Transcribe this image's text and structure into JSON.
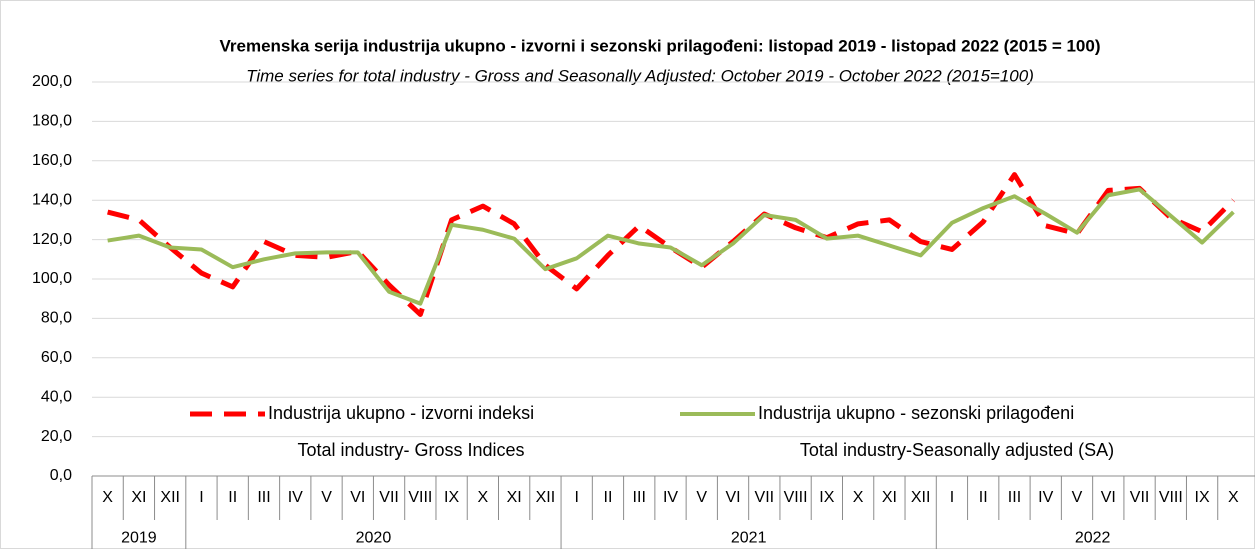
{
  "chart_data": {
    "type": "line",
    "title": "Vremenska serija industrija ukupno - izvorni i sezonski prilagođeni: listopad 2019 - listopad 2022 (2015 = 100)",
    "subtitle": "Time series for total industry - Gross and Seasonally Adjusted: October 2019 - October 2022 (2015=100)",
    "category_groups": [
      {
        "name": "2019",
        "categories": [
          "X",
          "XI",
          "XII"
        ]
      },
      {
        "name": "2020",
        "categories": [
          "I",
          "II",
          "III",
          "IV",
          "V",
          "VI",
          "VII",
          "VIII",
          "IX",
          "X",
          "XI",
          "XII"
        ]
      },
      {
        "name": "2021",
        "categories": [
          "I",
          "II",
          "III",
          "IV",
          "V",
          "VI",
          "VII",
          "VIII",
          "IX",
          "X",
          "XI",
          "XII"
        ]
      },
      {
        "name": "2022",
        "categories": [
          "I",
          "II",
          "III",
          "IV",
          "V",
          "VI",
          "VII",
          "VIII",
          "IX",
          "X"
        ]
      }
    ],
    "series": [
      {
        "name": "Industrija ukupno - izvorni indeksi",
        "name_en": "Total industry- Gross Indices",
        "color": "#ff0000",
        "dashed": true,
        "values": [
          134,
          130,
          116,
          103,
          96,
          119,
          112,
          111,
          114,
          97,
          82,
          130,
          137,
          128,
          107,
          95,
          112,
          127,
          116,
          106,
          119,
          133,
          126,
          121,
          128,
          130,
          119,
          115,
          129,
          153,
          127,
          123,
          145,
          146,
          131,
          124,
          140
        ]
      },
      {
        "name": "Industrija ukupno - sezonski prilagođeni",
        "name_en": "Total industry-Seasonally adjusted (SA)",
        "color": "#9bbb59",
        "dashed": false,
        "values": [
          119.5,
          122,
          116,
          115,
          106,
          110,
          113,
          113.5,
          113.5,
          93.5,
          87.5,
          127.5,
          125,
          120.5,
          105,
          110.5,
          122,
          118,
          116,
          107,
          118,
          132.5,
          130,
          120.5,
          122,
          117,
          112,
          128.5,
          136,
          142,
          133,
          123.5,
          142.5,
          145.5,
          132,
          118.5,
          134
        ]
      }
    ],
    "ylim": [
      0,
      200
    ],
    "yticks": [
      {
        "value": 0,
        "label": "0,0"
      },
      {
        "value": 20,
        "label": "20,0"
      },
      {
        "value": 40,
        "label": "40,0"
      },
      {
        "value": 60,
        "label": "60,0"
      },
      {
        "value": 80,
        "label": "80,0"
      },
      {
        "value": 100,
        "label": "100,0"
      },
      {
        "value": 120,
        "label": "120,0"
      },
      {
        "value": 140,
        "label": "140,0"
      },
      {
        "value": 160,
        "label": "160,0"
      },
      {
        "value": 180,
        "label": "180,0"
      },
      {
        "value": 200,
        "label": "200,0"
      }
    ],
    "grid": true
  }
}
